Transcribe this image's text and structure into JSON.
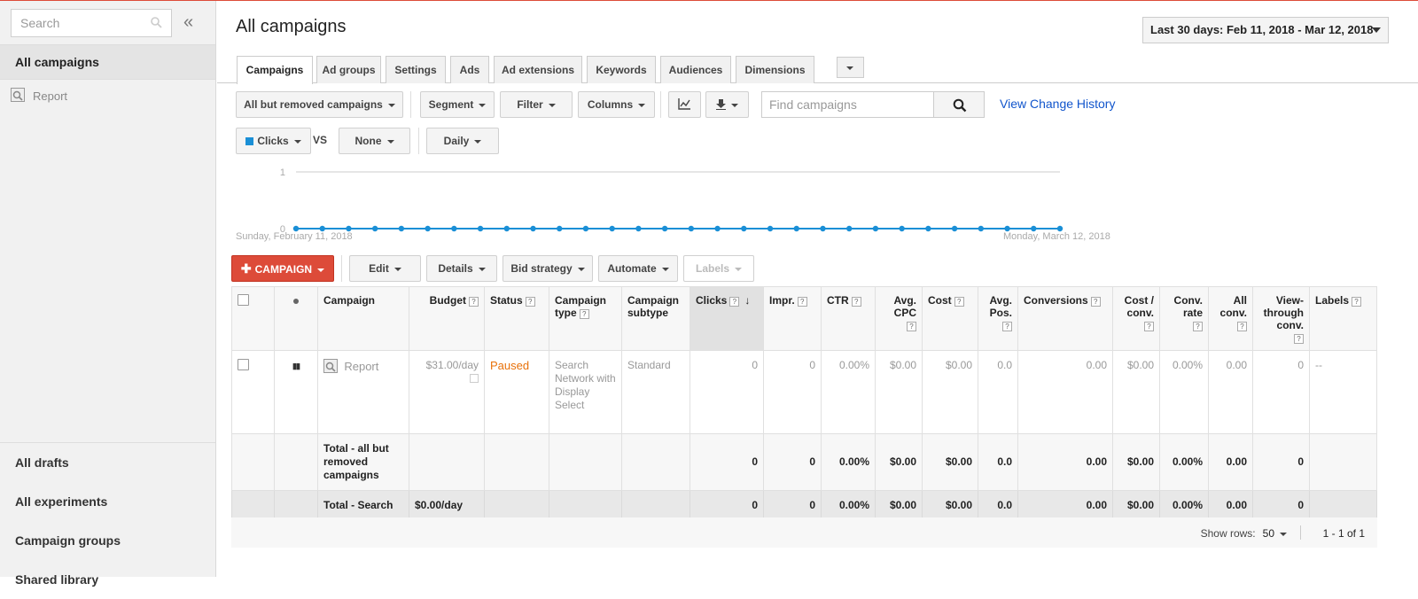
{
  "sidebar": {
    "search_placeholder": "Search",
    "collapse_glyph": "«",
    "all_campaigns": "All campaigns",
    "report_item": "Report",
    "bottom_items": [
      "All drafts",
      "All experiments",
      "Campaign groups",
      "Shared library"
    ]
  },
  "header": {
    "title": "All campaigns",
    "date_range": "Last 30 days: Feb 11, 2018 - Mar 12, 2018"
  },
  "tabs": [
    "Campaigns",
    "Ad groups",
    "Settings",
    "Ads",
    "Ad extensions",
    "Keywords",
    "Audiences",
    "Dimensions"
  ],
  "toolbar": {
    "filter_scope": "All but removed campaigns",
    "segment": "Segment",
    "filter": "Filter",
    "columns": "Columns",
    "find_placeholder": "Find campaigns",
    "view_change_history": "View Change History"
  },
  "chart_controls": {
    "metric1": "Clicks",
    "vs": "VS",
    "metric2": "None",
    "granularity": "Daily"
  },
  "chart_data": {
    "type": "line",
    "series": [
      {
        "name": "Clicks",
        "values": [
          0,
          0,
          0,
          0,
          0,
          0,
          0,
          0,
          0,
          0,
          0,
          0,
          0,
          0,
          0,
          0,
          0,
          0,
          0,
          0,
          0,
          0,
          0,
          0,
          0,
          0,
          0,
          0,
          0,
          0
        ]
      }
    ],
    "ylim": [
      0,
      1
    ],
    "yticks": [
      "0",
      "1"
    ],
    "x_start_label": "Sunday, February 11, 2018",
    "x_end_label": "Monday, March 12, 2018",
    "color": "#1a8fd6"
  },
  "actions": {
    "new_campaign": "CAMPAIGN",
    "edit": "Edit",
    "details": "Details",
    "bid_strategy": "Bid strategy",
    "automate": "Automate",
    "labels": "Labels"
  },
  "table": {
    "headers": {
      "campaign": "Campaign",
      "budget": "Budget",
      "status": "Status",
      "campaign_type": "Campaign type",
      "campaign_subtype": "Campaign subtype",
      "clicks": "Clicks",
      "impr": "Impr.",
      "ctr": "CTR",
      "avg_cpc": "Avg. CPC",
      "cost": "Cost",
      "avg_pos": "Avg. Pos.",
      "conversions": "Conversions",
      "cost_conv": "Cost / conv.",
      "conv_rate": "Conv. rate",
      "all_conv": "All conv.",
      "view_through": "View-through conv.",
      "labels": "Labels"
    },
    "row": {
      "campaign": "Report",
      "budget": "$31.00/day",
      "status": "Paused",
      "campaign_type": "Search Network with Display Select",
      "campaign_subtype": "Standard",
      "clicks": "0",
      "impr": "0",
      "ctr": "0.00%",
      "avg_cpc": "$0.00",
      "cost": "$0.00",
      "avg_pos": "0.0",
      "conversions": "0.00",
      "cost_conv": "$0.00",
      "conv_rate": "0.00%",
      "all_conv": "0.00",
      "view_through": "0",
      "labels": "--"
    },
    "total_removed": {
      "label": "Total - all but removed campaigns",
      "clicks": "0",
      "impr": "0",
      "ctr": "0.00%",
      "avg_cpc": "$0.00",
      "cost": "$0.00",
      "avg_pos": "0.0",
      "conversions": "0.00",
      "cost_conv": "$0.00",
      "conv_rate": "0.00%",
      "all_conv": "0.00",
      "view_through": "0"
    },
    "total_search": {
      "label": "Total - Search",
      "budget": "$0.00/day",
      "clicks": "0",
      "impr": "0",
      "ctr": "0.00%",
      "avg_cpc": "$0.00",
      "cost": "$0.00",
      "avg_pos": "0.0",
      "conversions": "0.00",
      "cost_conv": "$0.00",
      "conv_rate": "0.00%",
      "all_conv": "0.00",
      "view_through": "0"
    }
  },
  "footer": {
    "show_rows_label": "Show rows:",
    "show_rows_value": "50",
    "pagination": "1 - 1 of 1"
  }
}
